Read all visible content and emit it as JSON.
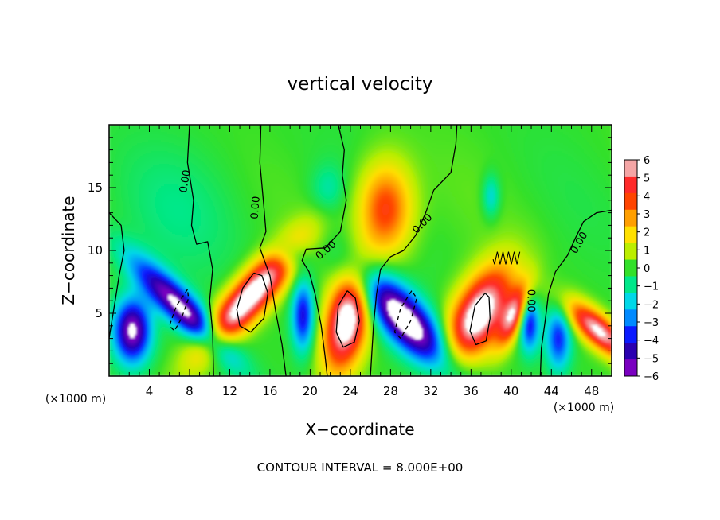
{
  "chart_data": {
    "type": "heatmap",
    "title": "vertical velocity",
    "xlabel": "X−coordinate",
    "ylabel": "Z−coordinate",
    "x_unit_left": "(×1000 m)",
    "x_unit_right": "(×1000 m)",
    "xlim": [
      0,
      50
    ],
    "ylim": [
      0,
      20
    ],
    "x_ticks": [
      "4",
      "8",
      "12",
      "16",
      "20",
      "24",
      "28",
      "32",
      "36",
      "40",
      "44",
      "48"
    ],
    "y_ticks": [
      "5",
      "10",
      "15"
    ],
    "contour_label": "0.00",
    "footer": "CONTOUR INTERVAL = 8.000E+00",
    "colorbar": {
      "ticks": [
        "6",
        "5",
        "4",
        "3",
        "2",
        "1",
        "0",
        "−1",
        "−2",
        "−3",
        "−4",
        "−5",
        "−6"
      ],
      "colors": [
        "#f4a5a5",
        "#ff2a2a",
        "#ff4500",
        "#ff9f00",
        "#ffe000",
        "#bcee00",
        "#33e02a",
        "#00e88a",
        "#00d8e8",
        "#008aff",
        "#0a1aff",
        "#2a00b0",
        "#7a00c0"
      ]
    },
    "cells": [
      {
        "x": 2.3,
        "z": 3.6,
        "sx": 1.3,
        "sz": 1.8,
        "a": -6.5,
        "rot": 0
      },
      {
        "x": 7.2,
        "z": 5.4,
        "sx": 1.4,
        "sz": 3.0,
        "a": -6.5,
        "rot": -25
      },
      {
        "x": 14.0,
        "z": 6.3,
        "sx": 1.6,
        "sz": 3.3,
        "a": 7.5,
        "rot": 22
      },
      {
        "x": 19.3,
        "z": 4.8,
        "sx": 0.8,
        "sz": 2.0,
        "a": -4.5,
        "rot": 0
      },
      {
        "x": 23.7,
        "z": 4.5,
        "sx": 1.5,
        "sz": 2.9,
        "a": 7.5,
        "rot": 5
      },
      {
        "x": 29.4,
        "z": 4.5,
        "sx": 1.9,
        "sz": 3.0,
        "a": -7.5,
        "rot": -22
      },
      {
        "x": 36.8,
        "z": 4.9,
        "sx": 1.9,
        "sz": 2.7,
        "a": 7.5,
        "rot": 12
      },
      {
        "x": 40.3,
        "z": 4.9,
        "sx": 0.8,
        "sz": 1.8,
        "a": 5.0,
        "rot": 10
      },
      {
        "x": 41.8,
        "z": 4.2,
        "sx": 0.7,
        "sz": 1.6,
        "a": -4.5,
        "rot": 0
      },
      {
        "x": 44.7,
        "z": 3.0,
        "sx": 0.9,
        "sz": 1.8,
        "a": -4.0,
        "rot": 0
      },
      {
        "x": 48.7,
        "z": 3.6,
        "sx": 1.3,
        "sz": 1.8,
        "a": 6.5,
        "rot": -25
      },
      {
        "x": 27.5,
        "z": 13.3,
        "sx": 1.9,
        "sz": 2.6,
        "a": 4.5,
        "rot": 0
      },
      {
        "x": 38.0,
        "z": 14.3,
        "sx": 0.6,
        "sz": 1.2,
        "a": -2.0,
        "rot": 0
      },
      {
        "x": 21.8,
        "z": 14.8,
        "sx": 1.2,
        "sz": 1.4,
        "a": -1.3,
        "rot": 0
      },
      {
        "x": 7.0,
        "z": 13.0,
        "sx": 5.0,
        "sz": 4.0,
        "a": -0.7,
        "rot": 0
      },
      {
        "x": 18.0,
        "z": 9.7,
        "sx": 1.3,
        "sz": 0.9,
        "a": -2.5,
        "rot": 0
      }
    ],
    "contours": [
      {
        "style": "solid",
        "points": [
          [
            0,
            13
          ],
          [
            1.2,
            12
          ],
          [
            1.5,
            10
          ],
          [
            1.0,
            8
          ],
          [
            0.6,
            6
          ],
          [
            0.2,
            4
          ],
          [
            0,
            3
          ]
        ]
      },
      {
        "style": "solid",
        "points": [
          [
            8.0,
            20
          ],
          [
            7.8,
            17
          ],
          [
            8.4,
            14
          ],
          [
            8.2,
            12
          ],
          [
            8.7,
            10.5
          ],
          [
            9.8,
            10.7
          ],
          [
            10.3,
            8.5
          ],
          [
            10.0,
            6
          ],
          [
            10.3,
            3.5
          ],
          [
            10.4,
            0
          ]
        ]
      },
      {
        "style": "solid",
        "points": [
          [
            15.1,
            20
          ],
          [
            15.0,
            17
          ],
          [
            15.4,
            13.5
          ],
          [
            15.6,
            11.5
          ],
          [
            15.0,
            10.2
          ],
          [
            16.0,
            8
          ],
          [
            16.6,
            5
          ],
          [
            17.2,
            2.5
          ],
          [
            17.6,
            0
          ]
        ]
      },
      {
        "style": "solid",
        "points": [
          [
            22.8,
            20
          ],
          [
            23.4,
            18
          ],
          [
            23.2,
            16
          ],
          [
            23.6,
            14
          ],
          [
            23.0,
            11.5
          ],
          [
            21.5,
            10.2
          ],
          [
            19.6,
            10.1
          ],
          [
            19.2,
            9.2
          ],
          [
            19.9,
            8.3
          ],
          [
            20.5,
            6.5
          ],
          [
            21.1,
            4
          ],
          [
            21.5,
            1.5
          ],
          [
            21.7,
            0
          ]
        ]
      },
      {
        "style": "solid",
        "points": [
          [
            34.6,
            20
          ],
          [
            34.5,
            18.5
          ],
          [
            34.0,
            16.2
          ],
          [
            32.3,
            14.8
          ],
          [
            31.5,
            13.0
          ],
          [
            30.5,
            11.2
          ],
          [
            29.3,
            10.0
          ],
          [
            28.0,
            9.5
          ],
          [
            27.0,
            8.5
          ],
          [
            26.6,
            6.5
          ],
          [
            26.3,
            4
          ],
          [
            26.0,
            0
          ]
        ]
      },
      {
        "style": "solid",
        "points": [
          [
            50,
            13.2
          ],
          [
            48.5,
            13.0
          ],
          [
            47.2,
            12.3
          ],
          [
            46.4,
            11.0
          ],
          [
            45.6,
            9.6
          ],
          [
            44.4,
            8.3
          ],
          [
            43.7,
            6.5
          ],
          [
            43.4,
            4.5
          ],
          [
            43.0,
            2.2
          ],
          [
            42.9,
            0
          ]
        ]
      },
      {
        "style": "solid",
        "points": [
          [
            14.4,
            8.2
          ],
          [
            13.3,
            7.0
          ],
          [
            12.7,
            5.3
          ],
          [
            13.0,
            4.0
          ],
          [
            14.1,
            3.5
          ],
          [
            15.4,
            4.6
          ],
          [
            15.8,
            6.6
          ],
          [
            15.2,
            8.0
          ],
          [
            14.4,
            8.2
          ]
        ]
      },
      {
        "style": "solid",
        "points": [
          [
            23.7,
            6.8
          ],
          [
            22.8,
            5.6
          ],
          [
            22.6,
            3.5
          ],
          [
            23.3,
            2.3
          ],
          [
            24.4,
            2.7
          ],
          [
            24.9,
            4.4
          ],
          [
            24.5,
            6.2
          ],
          [
            23.7,
            6.8
          ]
        ]
      },
      {
        "style": "solid",
        "points": [
          [
            37.4,
            6.6
          ],
          [
            36.4,
            5.6
          ],
          [
            35.9,
            3.6
          ],
          [
            36.5,
            2.5
          ],
          [
            37.5,
            2.8
          ],
          [
            37.9,
            4.6
          ],
          [
            37.8,
            6.3
          ],
          [
            37.4,
            6.6
          ]
        ]
      },
      {
        "style": "dashed",
        "points": [
          [
            7.8,
            6.9
          ],
          [
            6.7,
            5.6
          ],
          [
            6.0,
            4.0
          ],
          [
            6.5,
            3.6
          ],
          [
            7.2,
            4.6
          ],
          [
            7.9,
            6.2
          ],
          [
            7.8,
            6.9
          ]
        ]
      },
      {
        "style": "dashed",
        "points": [
          [
            30.1,
            6.8
          ],
          [
            29.0,
            5.4
          ],
          [
            28.4,
            3.5
          ],
          [
            29.0,
            3.0
          ],
          [
            30.0,
            4.4
          ],
          [
            30.6,
            6.2
          ],
          [
            30.1,
            6.8
          ]
        ]
      }
    ],
    "contour_labels": [
      {
        "x": 7.6,
        "z": 15.5,
        "rot": -80
      },
      {
        "x": 14.6,
        "z": 13.4,
        "rot": -85
      },
      {
        "x": 21.6,
        "z": 10.0,
        "rot": -40
      },
      {
        "x": 31.2,
        "z": 12.1,
        "rot": -45
      },
      {
        "x": 41.9,
        "z": 6.0,
        "rot": 90
      },
      {
        "x": 46.8,
        "z": 10.6,
        "rot": -60
      }
    ]
  }
}
